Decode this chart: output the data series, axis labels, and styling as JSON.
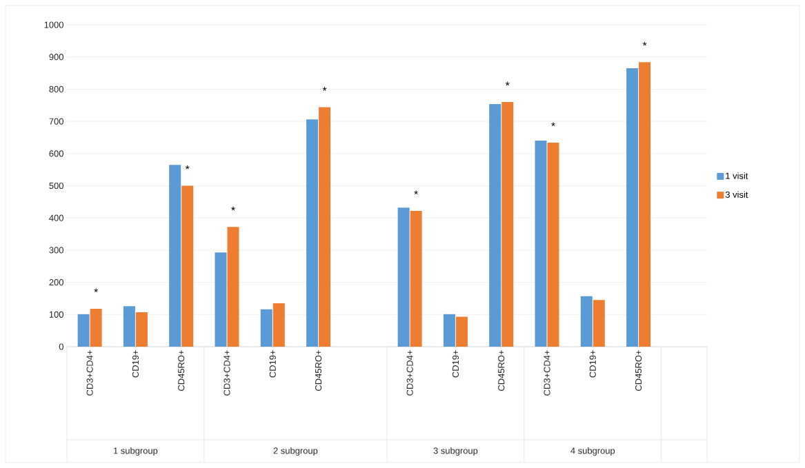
{
  "chart_data": {
    "type": "bar",
    "categories": [
      "CD3+CD4+",
      "CD19+",
      "CD45RO+",
      "CD3+CD4+",
      "CD19+",
      "CD45RO+",
      null,
      "CD3+CD4+",
      "CD19+",
      "CD45RO+",
      "CD3+CD4+",
      "CD19+",
      "CD45RO+",
      null
    ],
    "series": [
      {
        "name": "1 visit",
        "color": "#5b9bd5",
        "values": [
          101,
          126,
          565,
          293,
          116,
          706,
          null,
          432,
          101,
          754,
          640,
          157,
          865,
          null
        ]
      },
      {
        "name": "3 visit",
        "color": "#ed7d31",
        "values": [
          118,
          107,
          500,
          372,
          135,
          744,
          null,
          422,
          93,
          760,
          634,
          145,
          884,
          null
        ]
      }
    ],
    "ylim": [
      0,
      1000
    ],
    "yticks": [
      0,
      100,
      200,
      300,
      400,
      500,
      600,
      700,
      800,
      900,
      1000
    ],
    "grid": "y",
    "legend": "right",
    "annotations": [
      "1 subgroup",
      "2 subgroup",
      "3 subgroup",
      "4 subgroup",
      "*",
      "*",
      "*",
      "*",
      "*",
      "*",
      "*",
      "*"
    ]
  }
}
